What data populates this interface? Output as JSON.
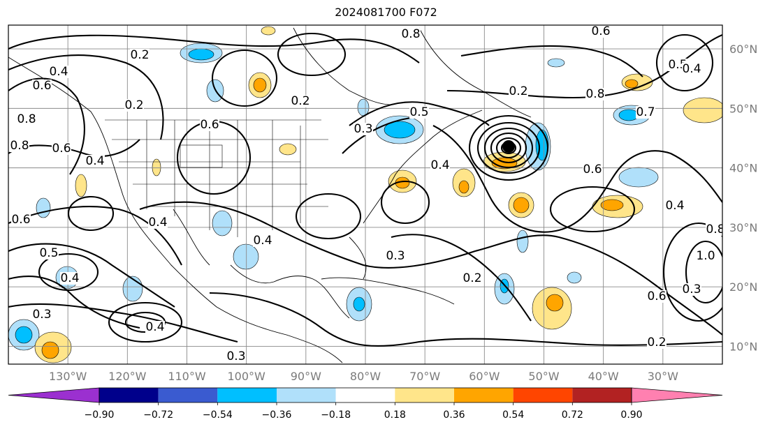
{
  "title": "2024081700 F072",
  "map": {
    "projection": "PlateCarree",
    "lon_range": [
      -140,
      -20
    ],
    "lat_range": [
      7,
      64
    ],
    "lat_labels": [
      "60°N",
      "50°N",
      "40°N",
      "30°N",
      "20°N",
      "10°N"
    ],
    "lat_values": [
      60,
      50,
      40,
      30,
      20,
      10
    ],
    "lon_labels": [
      "130°W",
      "120°W",
      "110°W",
      "100°W",
      "90°W",
      "80°W",
      "70°W",
      "60°W",
      "50°W",
      "40°W",
      "30°W"
    ],
    "lon_values": [
      -130,
      -120,
      -110,
      -100,
      -90,
      -80,
      -70,
      -60,
      -50,
      -40,
      -30
    ],
    "grid": true,
    "contour_labels": [
      "0.2",
      "0.4",
      "0.6",
      "0.8",
      "0.4",
      "0.2",
      "0.6",
      "0.8",
      "0.5",
      "0.4",
      "0.6",
      "0.3",
      "0.3",
      "0.2",
      "0.2",
      "0.3",
      "0.4",
      "0.6",
      "0.5",
      "0.4",
      "0.2",
      "0.8",
      "0.7",
      "0.6",
      "0.4",
      "0.6",
      "0.3",
      "0.8",
      "1.0",
      "0.5",
      "0.4",
      "0.2",
      "0.4",
      "0.3",
      "0.4",
      "0.6",
      "0.8"
    ]
  },
  "colorbar": {
    "boundaries": [
      -0.9,
      -0.72,
      -0.54,
      -0.36,
      -0.18,
      0.18,
      0.36,
      0.54,
      0.72,
      0.9
    ],
    "tick_labels": [
      "−0.90",
      "−0.72",
      "−0.54",
      "−0.36",
      "−0.18",
      "0.18",
      "0.36",
      "0.54",
      "0.72",
      "0.90"
    ],
    "colors": [
      "#9b30d0",
      "#00008b",
      "#3a5bd0",
      "#00bfff",
      "#b0e0fa",
      "#ffffff",
      "#ffe58a",
      "#ffa500",
      "#ff4500",
      "#b22222",
      "#ff80b0"
    ],
    "extend": "both"
  }
}
